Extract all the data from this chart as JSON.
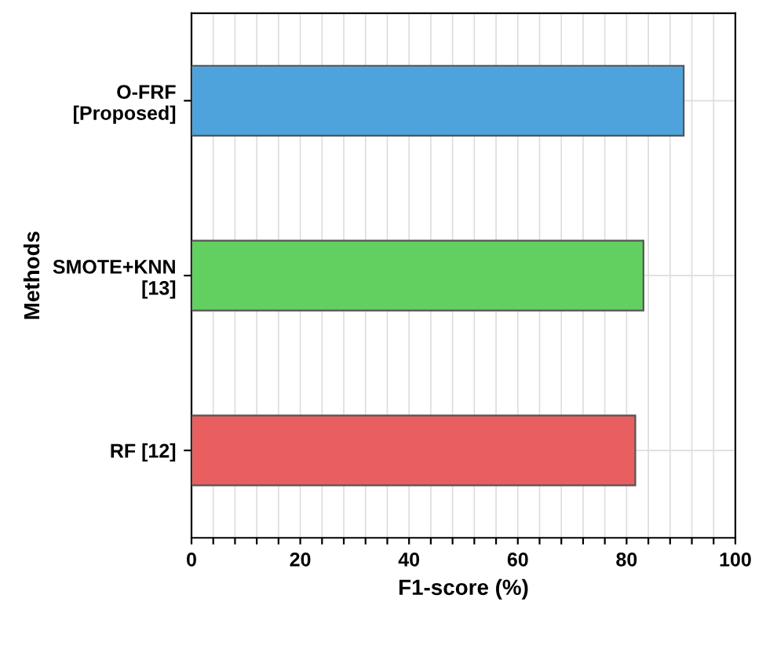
{
  "chart_data": {
    "type": "bar",
    "orientation": "horizontal",
    "categories": [
      "O-FRF\n[Proposed]",
      "SMOTE+KNN\n[13]",
      "RF [12]"
    ],
    "values": [
      90.5,
      83.1,
      81.6
    ],
    "colors": [
      "#4fa3dd",
      "#62d060",
      "#e95f5f"
    ],
    "xlabel": "F1-score (%)",
    "ylabel": "Methods",
    "xlim": [
      0,
      100
    ],
    "xticks": [
      0,
      {
        "value": 4,
        "label": null
      },
      {
        "value": 8,
        "label": null
      },
      {
        "value": 12,
        "label": null
      },
      {
        "value": 16,
        "label": null
      },
      20,
      {
        "value": 24,
        "label": null
      },
      {
        "value": 28,
        "label": null
      },
      {
        "value": 32,
        "label": null
      },
      {
        "value": 36,
        "label": null
      },
      40,
      {
        "value": 44,
        "label": null
      },
      {
        "value": 48,
        "label": null
      },
      {
        "value": 52,
        "label": null
      },
      {
        "value": 56,
        "label": null
      },
      60,
      {
        "value": 64,
        "label": null
      },
      {
        "value": 68,
        "label": null
      },
      {
        "value": 72,
        "label": null
      },
      {
        "value": 76,
        "label": null
      },
      80,
      {
        "value": 84,
        "label": null
      },
      {
        "value": 88,
        "label": null
      },
      {
        "value": 92,
        "label": null
      },
      {
        "value": 96,
        "label": null
      },
      100
    ],
    "grid": true
  }
}
